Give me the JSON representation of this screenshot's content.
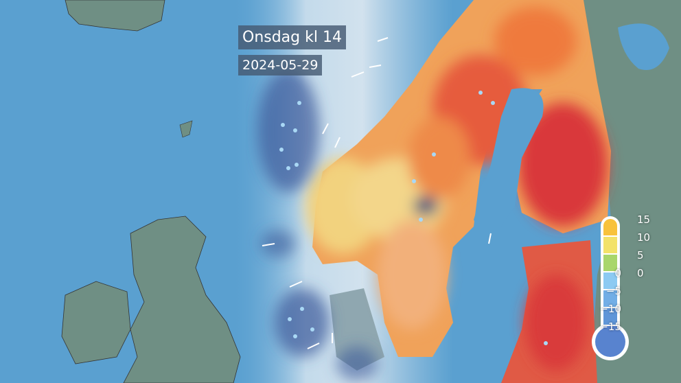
{
  "overlay": {
    "title": "Onsdag kl 14",
    "date": "2024-05-29"
  },
  "legend": {
    "type": "temperature-thermometer",
    "right_ticks": [
      "15",
      "10",
      "5",
      "0"
    ],
    "left_ticks": [
      "0",
      "−5",
      "−10",
      "−15"
    ],
    "segment_colors": [
      "#f8c23c",
      "#f3e26a",
      "#a9d66b",
      "#8ccaf2",
      "#72aee6",
      "#5f96d8",
      "#5883cf"
    ]
  },
  "colors": {
    "sea": "#5aa0d0",
    "land": "#6f8f84",
    "warm": "#e8733f",
    "hot": "#d93a3a",
    "mild": "#f2cf7a",
    "rain": "#3c5a9a"
  },
  "icons": [
    "raindrop-icon",
    "wind-arrow-icon",
    "thermometer-icon"
  ]
}
